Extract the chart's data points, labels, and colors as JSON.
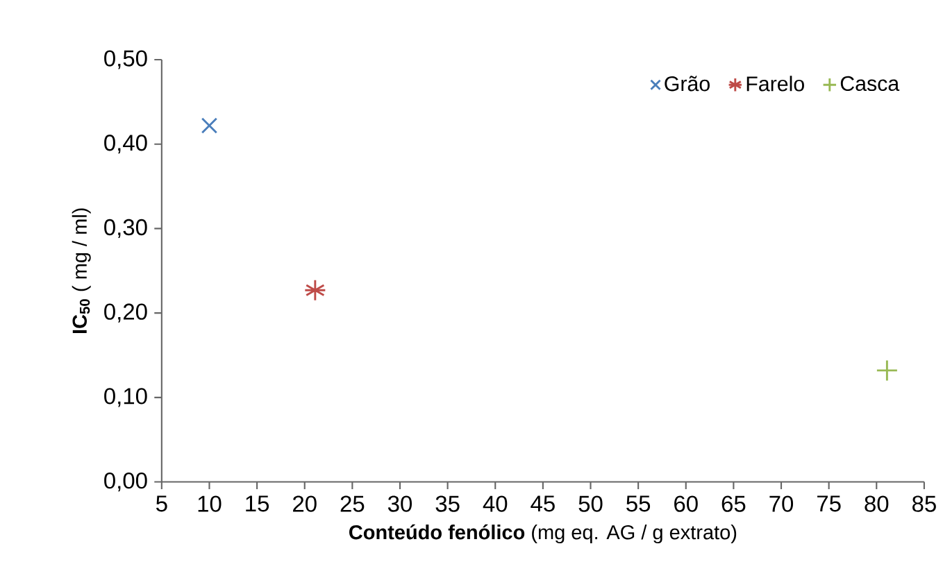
{
  "chart_data": {
    "type": "scatter",
    "xlabel": "**Conteúdo fenólico** (mg eq. AG / g extrato)",
    "ylabel": "**IC$_{50}$** ( mg / ml)",
    "series": [
      {
        "name": "Grão",
        "color": "#4a7ebb",
        "marker": "cross",
        "x": [
          10.0
        ],
        "values": [
          0.422
        ]
      },
      {
        "name": "Farelo",
        "color": "#be4b48",
        "x": [
          21.1
        ],
        "values": [
          0.227
        ]
      },
      {
        "name": "Casca",
        "color": "#98b954",
        "marker": "plus",
        "x": [
          81.1
        ],
        "values": [
          0.132
        ]
      }
    ],
    "xlim": [
      5,
      85
    ],
    "xticks": [
      5,
      10,
      15,
      20,
      25,
      30,
      35,
      40,
      45,
      50,
      55,
      60,
      65,
      70,
      75,
      80,
      85
    ],
    "ylim": [
      0,
      0.5
    ],
    "yticks": [
      {
        "value": 0,
        "label": "0,00"
      },
      {
        "value": 0.1,
        "label": "0,10"
      },
      {
        "value": 0.2,
        "label": "0,20"
      },
      {
        "value": 0.3,
        "label": "0,30"
      },
      {
        "value": 0.4,
        "label": "0,40"
      },
      {
        "value": 0.5,
        "label": "0,50"
      }
    ],
    "legend": "top right",
    "grid": false
  }
}
